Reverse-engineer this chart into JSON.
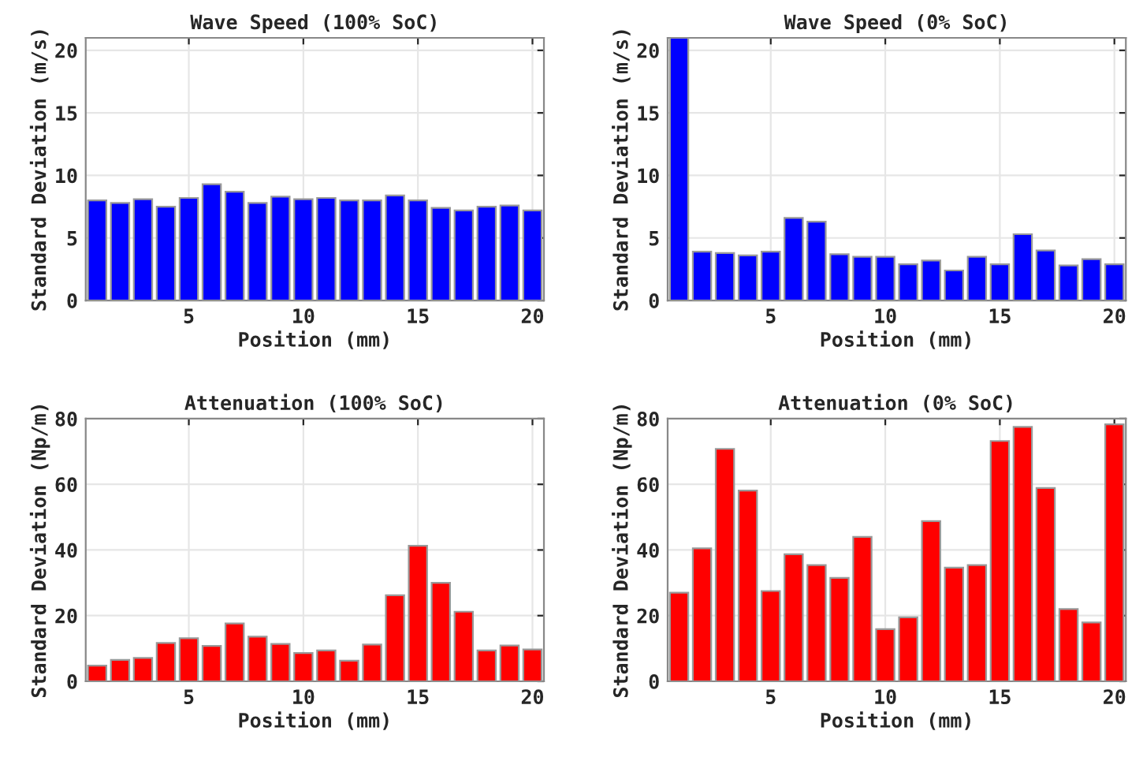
{
  "chart_data": [
    {
      "type": "bar",
      "title": "Wave Speed (100% SoC)",
      "xlabel": "Position (mm)",
      "ylabel": "Standard Deviation (m/s)",
      "x": [
        1,
        2,
        3,
        4,
        5,
        6,
        7,
        8,
        9,
        10,
        11,
        12,
        13,
        14,
        15,
        16,
        17,
        18,
        19,
        20
      ],
      "values": [
        8.0,
        7.8,
        8.1,
        7.5,
        8.2,
        9.3,
        8.7,
        7.8,
        8.3,
        8.1,
        8.2,
        8.0,
        8.0,
        8.4,
        8.0,
        7.4,
        7.2,
        7.5,
        7.6,
        7.2
      ],
      "color": "#0000ff",
      "xlim": [
        0.5,
        20.5
      ],
      "xticks": [
        5,
        10,
        15,
        20
      ],
      "ylim": [
        0,
        21
      ],
      "yticks": [
        0,
        5,
        10,
        15,
        20
      ],
      "grid": true
    },
    {
      "type": "bar",
      "title": "Wave Speed (0% SoC)",
      "xlabel": "Position (mm)",
      "ylabel": "Standard Deviation (m/s)",
      "x": [
        1,
        2,
        3,
        4,
        5,
        6,
        7,
        8,
        9,
        10,
        11,
        12,
        13,
        14,
        15,
        16,
        17,
        18,
        19,
        20
      ],
      "values": [
        21,
        3.9,
        3.8,
        3.6,
        3.9,
        6.6,
        6.3,
        3.7,
        3.5,
        3.5,
        2.9,
        3.2,
        2.4,
        3.5,
        2.9,
        5.3,
        4.0,
        2.8,
        3.3,
        2.9
      ],
      "color": "#0000ff",
      "xlim": [
        0.5,
        20.5
      ],
      "xticks": [
        5,
        10,
        15,
        20
      ],
      "ylim": [
        0,
        21
      ],
      "yticks": [
        0,
        5,
        10,
        15,
        20
      ],
      "grid": true
    },
    {
      "type": "bar",
      "title": "Attenuation (100% SoC)",
      "xlabel": "Position (mm)",
      "ylabel": "Standard Deviation (Np/m)",
      "x": [
        1,
        2,
        3,
        4,
        5,
        6,
        7,
        8,
        9,
        10,
        11,
        12,
        13,
        14,
        15,
        16,
        17,
        18,
        19,
        20
      ],
      "values": [
        4.8,
        6.5,
        7.1,
        11.7,
        13.1,
        10.8,
        17.6,
        13.6,
        11.4,
        8.6,
        9.4,
        6.3,
        11.2,
        26.2,
        41.3,
        30.0,
        21.2,
        9.4,
        10.9,
        9.7
      ],
      "color": "#ff0000",
      "xlim": [
        0.5,
        20.5
      ],
      "xticks": [
        5,
        10,
        15,
        20
      ],
      "ylim": [
        0,
        80
      ],
      "yticks": [
        0,
        20,
        40,
        60,
        80
      ],
      "grid": true
    },
    {
      "type": "bar",
      "title": "Attenuation (0% SoC)",
      "xlabel": "Position (mm)",
      "ylabel": "Standard Deviation (Np/m)",
      "x": [
        1,
        2,
        3,
        4,
        5,
        6,
        7,
        8,
        9,
        10,
        11,
        12,
        13,
        14,
        15,
        16,
        17,
        18,
        19,
        20
      ],
      "values": [
        27,
        40.5,
        70.8,
        58.1,
        27.5,
        38.7,
        35.4,
        31.5,
        44,
        15.9,
        19.5,
        48.8,
        34.6,
        35.4,
        73.2,
        77.5,
        58.9,
        22,
        17.9,
        78.3
      ],
      "color": "#ff0000",
      "xlim": [
        0.5,
        20.5
      ],
      "xticks": [
        5,
        10,
        15,
        20
      ],
      "ylim": [
        0,
        80
      ],
      "yticks": [
        0,
        20,
        40,
        60,
        80
      ],
      "grid": true
    }
  ]
}
